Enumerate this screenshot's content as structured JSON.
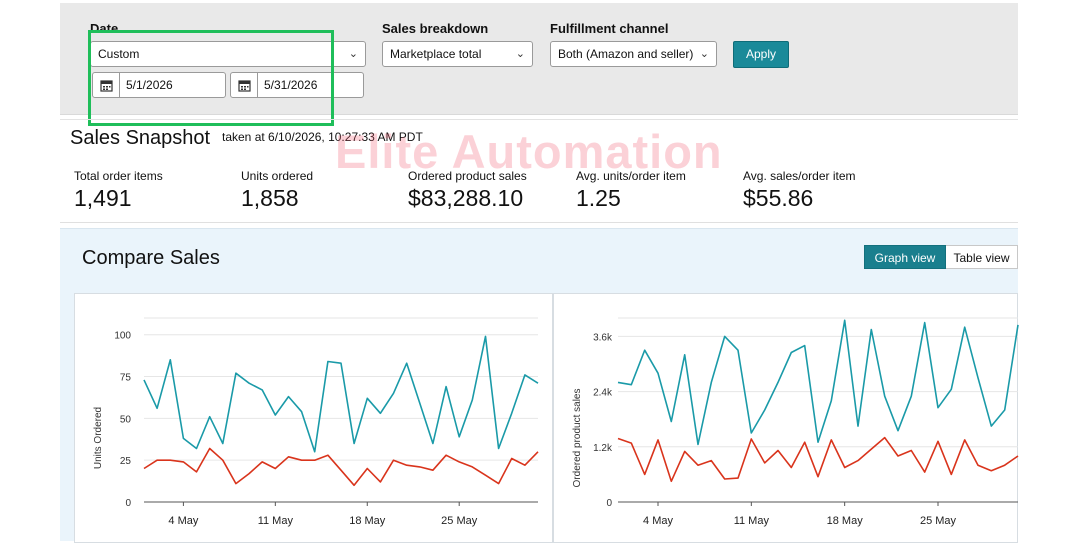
{
  "filters": {
    "date_label": "Date",
    "date_range_value": "Custom",
    "start_date": "5/1/2026",
    "end_date": "5/31/2026",
    "sales_breakdown_label": "Sales breakdown",
    "sales_breakdown_value": "Marketplace total",
    "fulfillment_label": "Fulfillment channel",
    "fulfillment_value": "Both (Amazon and seller)",
    "apply_label": "Apply"
  },
  "snapshot": {
    "title": "Sales Snapshot",
    "taken_at": "taken at 6/10/2026, 10:27:33 AM PDT",
    "watermark": "Elite Automation",
    "metrics": [
      {
        "label": "Total order items",
        "value": "1,491"
      },
      {
        "label": "Units ordered",
        "value": "1,858"
      },
      {
        "label": "Ordered product sales",
        "value": "$83,288.10"
      },
      {
        "label": "Avg. units/order item",
        "value": "1.25"
      },
      {
        "label": "Avg. sales/order item",
        "value": "$55.86"
      }
    ]
  },
  "compare": {
    "title": "Compare Sales",
    "graph_view_label": "Graph view",
    "table_view_label": "Table view"
  },
  "colors": {
    "teal": "#1a9aa8",
    "red": "#d9341c",
    "accent": "#1a8a99"
  },
  "chart_data": [
    {
      "type": "line",
      "ylabel": "Units Ordered",
      "ylim": [
        0,
        110
      ],
      "yticks": [
        0,
        25,
        50,
        75,
        100
      ],
      "xticks": [
        "4 May",
        "11 May",
        "18 May",
        "25 May"
      ],
      "xtick_days": [
        4,
        11,
        18,
        25
      ],
      "x_start_day": 1,
      "series": [
        {
          "color": "#1a9aa8",
          "values": [
            73,
            56,
            85,
            38,
            32,
            51,
            35,
            77,
            71,
            67,
            52,
            63,
            54,
            30,
            84,
            83,
            35,
            62,
            53,
            65,
            83,
            59,
            35,
            69,
            39,
            61,
            99,
            32,
            53,
            76,
            71
          ]
        },
        {
          "color": "#d9341c",
          "values": [
            20,
            25,
            25,
            24,
            18,
            32,
            25,
            11,
            17,
            24,
            20,
            27,
            25,
            25,
            28,
            19,
            10,
            20,
            12,
            25,
            22,
            21,
            19,
            28,
            24,
            21,
            16,
            11,
            26,
            22,
            30
          ]
        }
      ]
    },
    {
      "type": "line",
      "ylabel": "Ordered product sales",
      "ylim": [
        0,
        4000
      ],
      "yticks": [
        0,
        1200,
        2400,
        3600
      ],
      "ytick_labels": [
        "0",
        "1.2k",
        "2.4k",
        "3.6k"
      ],
      "xticks": [
        "4 May",
        "11 May",
        "18 May",
        "25 May"
      ],
      "xtick_days": [
        4,
        11,
        18,
        25
      ],
      "x_start_day": 1,
      "series": [
        {
          "color": "#1a9aa8",
          "values": [
            2600,
            2550,
            3300,
            2800,
            1750,
            3200,
            1250,
            2600,
            3600,
            3300,
            1500,
            2000,
            2600,
            3250,
            3400,
            1300,
            2200,
            3950,
            1650,
            3750,
            2300,
            1550,
            2300,
            3900,
            2050,
            2450,
            3800,
            2700,
            1650,
            2000,
            3850
          ]
        },
        {
          "color": "#d9341c",
          "values": [
            1380,
            1280,
            600,
            1350,
            450,
            1100,
            800,
            900,
            500,
            520,
            1370,
            850,
            1120,
            750,
            1300,
            550,
            1350,
            750,
            900,
            1150,
            1400,
            1000,
            1120,
            650,
            1320,
            600,
            1350,
            800,
            680,
            800,
            1000
          ]
        }
      ]
    }
  ]
}
